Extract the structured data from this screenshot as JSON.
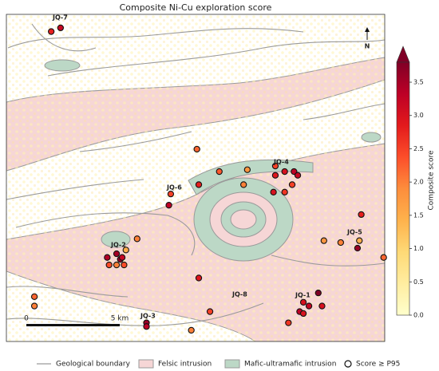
{
  "title": "Composite Ni-Cu exploration score",
  "chart_data": {
    "type": "scatter",
    "x": [
      2.4,
      2.9,
      10.2,
      11.4,
      12.9,
      14.4,
      14.9,
      15.4,
      14.4,
      15.6,
      15.3,
      14.3,
      14.9,
      12.7,
      10.3,
      8.8,
      8.7,
      7.0,
      5.4,
      5.9,
      6.1,
      5.9,
      6.3,
      5.5,
      6.2,
      6.4,
      1.5,
      1.5,
      7.5,
      7.5,
      9.9,
      10.9,
      10.3,
      15.1,
      15.9,
      16.2,
      15.7,
      15.9,
      16.7,
      16.9,
      17.0,
      17.9,
      18.8,
      18.9,
      19.0,
      20.2
    ],
    "y": [
      16.6,
      16.8,
      10.3,
      9.1,
      9.2,
      9.4,
      9.1,
      9.1,
      8.9,
      8.9,
      8.4,
      8.0,
      8.0,
      8.4,
      8.4,
      7.9,
      7.3,
      5.5,
      4.5,
      4.7,
      4.4,
      4.1,
      4.1,
      4.1,
      4.5,
      4.9,
      2.4,
      1.9,
      1.0,
      0.8,
      0.6,
      1.6,
      3.4,
      1.0,
      2.1,
      1.9,
      1.6,
      1.5,
      2.6,
      1.9,
      5.4,
      5.3,
      5.0,
      5.4,
      6.8,
      4.5
    ],
    "values": [
      2.8,
      3.2,
      2.2,
      2.3,
      1.8,
      2.5,
      3.0,
      3.3,
      2.9,
      3.2,
      2.5,
      3.0,
      2.6,
      2.0,
      2.8,
      2.5,
      3.3,
      2.0,
      3.4,
      3.5,
      3.6,
      2.0,
      2.4,
      2.4,
      3.2,
      1.5,
      2.2,
      2.0,
      3.6,
      3.3,
      2.0,
      2.5,
      2.9,
      2.6,
      3.0,
      3.2,
      3.3,
      3.0,
      3.8,
      3.0,
      1.8,
      2.0,
      3.6,
      1.5,
      2.8,
      2.2
    ],
    "colorbar_label": "Composite score",
    "clim": [
      0,
      3.8
    ],
    "cticks": [
      {
        "value": 0,
        "label": "0.0"
      },
      0.5,
      {
        "value": 1,
        "label": "1.0"
      },
      1.5,
      {
        "value": 2,
        "label": "2.0"
      },
      2.5,
      {
        "value": 3,
        "label": "3.0"
      },
      3.5
    ],
    "colormap": [
      "#ffffcc",
      "#ffeda0",
      "#fed976",
      "#feb24c",
      "#fd8d3c",
      "#fc4e2a",
      "#e31a1c",
      "#bd0026",
      "#800026"
    ]
  },
  "targets": [
    "JQ-7",
    "JQ-4",
    "JQ-6",
    "JQ-2",
    "JQ-5",
    "JQ-8",
    "JQ-1",
    "JQ-3"
  ],
  "scale_bar": [
    "0",
    "5 km"
  ],
  "north": "N",
  "legend": [
    "Geological boundary",
    "Felsic intrusion",
    "Mafic-ultramafic intrusion",
    "Score ≥ P95"
  ]
}
